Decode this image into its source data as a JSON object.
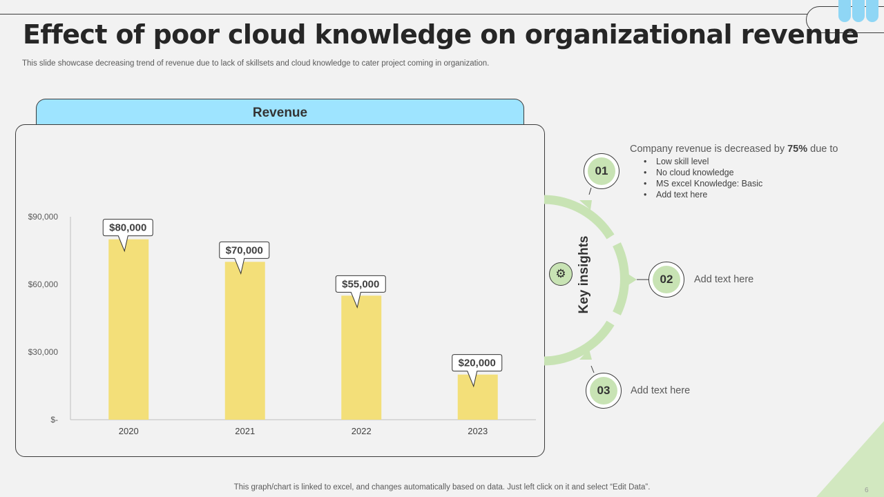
{
  "slide": {
    "title": "Effect of poor cloud knowledge on organizational revenue",
    "subtitle": "This slide showcase decreasing trend of revenue due to lack of skillsets and cloud knowledge to cater project coming in organization.",
    "footer": "This graph/chart is linked to excel, and changes automatically based on data. Just left click on it and select “Edit Data”.",
    "page_number": "6"
  },
  "chart_header": "Revenue",
  "chart_data": {
    "type": "bar",
    "title": "Revenue",
    "categories": [
      "2020",
      "2021",
      "2022",
      "2023"
    ],
    "values": [
      80000,
      70000,
      55000,
      20000
    ],
    "data_labels": [
      "$80,000",
      "$70,000",
      "$55,000",
      "$20,000"
    ],
    "ylim": [
      0,
      90000
    ],
    "yticks": [
      0,
      30000,
      60000,
      90000
    ],
    "ytick_labels": [
      "$-",
      "$30,000",
      "$60,000",
      "$90,000"
    ],
    "xlabel": "",
    "ylabel": "",
    "bar_color": "#f3df79",
    "grid": false,
    "legend": false
  },
  "insights": {
    "label": "Key insights",
    "items": [
      {
        "number": "01",
        "heading_prefix": "Company revenue is decreased by ",
        "heading_bold": "75%",
        "heading_suffix": " due to",
        "bullets": [
          "Low skill level",
          "No cloud knowledge",
          "MS excel Knowledge:  Basic",
          "Add text here"
        ]
      },
      {
        "number": "02",
        "text": "Add text here"
      },
      {
        "number": "03",
        "text": "Add text here"
      }
    ]
  },
  "icons": {
    "insight": "lightbulb-gear-icon"
  },
  "colors": {
    "accent_blue": "#9ee4ff",
    "accent_green": "#c8e3b4",
    "bar_yellow": "#f3df79"
  }
}
